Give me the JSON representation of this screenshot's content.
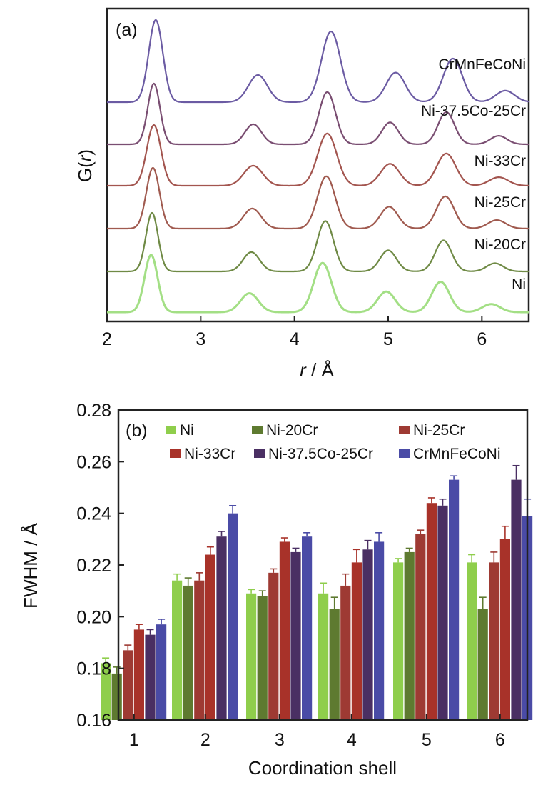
{
  "chart_data": [
    {
      "type": "line",
      "panel_label": "(a)",
      "xlabel_italic": "r",
      "xlabel_unit": " / Å",
      "ylabel_prefix": "G(",
      "ylabel_italic": "r",
      "ylabel_suffix": ")",
      "xlim": [
        2,
        6.5
      ],
      "xticks": [
        "2",
        "3",
        "4",
        "5",
        "6"
      ],
      "y_ticks_shown": false,
      "grid": false,
      "legend": "labels above each curve at right",
      "series": [
        {
          "name": "CrMnFeCoNi",
          "color": "#6b5ba3",
          "peaks_r": [
            2.52,
            3.61,
            4.39,
            5.08,
            5.69,
            6.25
          ]
        },
        {
          "name": "Ni-37.5Co-25Cr",
          "color": "#7a4e72",
          "peaks_r": [
            2.5,
            3.56,
            4.35,
            5.02,
            5.62,
            6.18
          ]
        },
        {
          "name": "Ni-33Cr",
          "color": "#a3554f",
          "peaks_r": [
            2.5,
            3.56,
            4.35,
            5.02,
            5.62,
            6.18
          ]
        },
        {
          "name": "Ni-25Cr",
          "color": "#a05a4f",
          "peaks_r": [
            2.49,
            3.55,
            4.34,
            5.01,
            5.61,
            6.16
          ]
        },
        {
          "name": "Ni-20Cr",
          "color": "#6f8a45",
          "peaks_r": [
            2.48,
            3.54,
            4.33,
            5.0,
            5.59,
            6.14
          ]
        },
        {
          "name": "Ni",
          "color": "#a3df85",
          "peaks_r": [
            2.47,
            3.52,
            4.3,
            4.98,
            5.56,
            6.1
          ]
        }
      ]
    },
    {
      "type": "bar",
      "panel_label": "(b)",
      "xlabel": "Coordination shell",
      "ylabel_text": "FWHM / ",
      "ylabel_unit": "Å",
      "ylim": [
        0.16,
        0.28
      ],
      "yticks": [
        "0.16",
        "0.18",
        "0.20",
        "0.22",
        "0.24",
        "0.26",
        "0.28"
      ],
      "categories": [
        "1",
        "2",
        "3",
        "4",
        "5",
        "6"
      ],
      "legend": "top, two rows",
      "grid": false,
      "series": [
        {
          "name": "Ni",
          "color": "#8fce4c",
          "values": [
            0.182,
            0.214,
            0.209,
            0.209,
            0.221,
            0.221
          ],
          "errors": [
            0.002,
            0.0025,
            0.0015,
            0.004,
            0.0015,
            0.003
          ]
        },
        {
          "name": "Ni-20Cr",
          "color": "#5e7a30",
          "values": [
            0.178,
            0.212,
            0.208,
            0.203,
            0.225,
            0.203
          ],
          "errors": [
            0.0025,
            0.003,
            0.002,
            0.0045,
            0.0015,
            0.0045
          ]
        },
        {
          "name": "Ni-25Cr",
          "color": "#9e3a33",
          "values": [
            0.187,
            0.214,
            0.217,
            0.212,
            0.232,
            0.221
          ],
          "errors": [
            0.002,
            0.003,
            0.0015,
            0.0045,
            0.0015,
            0.004
          ]
        },
        {
          "name": "Ni-33Cr",
          "color": "#a83229",
          "values": [
            0.195,
            0.224,
            0.229,
            0.221,
            0.244,
            0.23
          ],
          "errors": [
            0.002,
            0.003,
            0.0015,
            0.005,
            0.002,
            0.005
          ]
        },
        {
          "name": "Ni-37.5Co-25Cr",
          "color": "#4a2f63",
          "values": [
            0.193,
            0.231,
            0.225,
            0.226,
            0.243,
            0.253
          ],
          "errors": [
            0.002,
            0.002,
            0.0015,
            0.0035,
            0.0025,
            0.0055
          ]
        },
        {
          "name": "CrMnFeCoNi",
          "color": "#4a4ba6",
          "values": [
            0.197,
            0.24,
            0.231,
            0.229,
            0.253,
            0.239
          ],
          "errors": [
            0.002,
            0.003,
            0.0015,
            0.0035,
            0.0015,
            0.0065
          ]
        }
      ]
    }
  ]
}
